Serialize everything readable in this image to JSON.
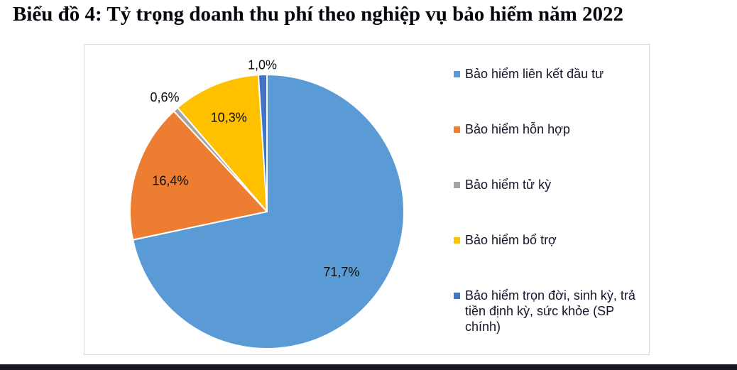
{
  "page": {
    "title": "Biểu đồ 4: Tỷ trọng doanh thu phí theo nghiệp vụ bảo hiểm năm 2022",
    "bottom_bar_color": "#171722"
  },
  "chart_data": {
    "type": "pie",
    "title": "Biểu đồ 4: Tỷ trọng doanh thu phí theo nghiệp vụ bảo hiểm năm 2022",
    "legend_position": "right",
    "start_angle_deg": 0,
    "direction": "clockwise",
    "value_unit": "%",
    "decimal_style": "comma",
    "slices": [
      {
        "label": "Bảo hiểm liên kết đầu tư",
        "value": 71.7,
        "display": "71,7%",
        "color": "#5B9BD5",
        "label_placement": "inside",
        "label_radius": 0.7
      },
      {
        "label": "Bảo hiểm hỗn hợp",
        "value": 16.4,
        "display": "16,4%",
        "color": "#ED7D31",
        "label_placement": "inside",
        "label_radius": 0.74
      },
      {
        "label": "Bảo hiểm tử kỳ",
        "value": 0.6,
        "display": "0,6%",
        "color": "#A5A5A5",
        "label_placement": "outside",
        "label_radius": 1.12
      },
      {
        "label": "Bảo hiểm bổ trợ",
        "value": 10.3,
        "display": "10,3%",
        "color": "#FFC000",
        "label_placement": "inside",
        "label_radius": 0.74
      },
      {
        "label": "Bảo hiểm trọn đời, sinh kỳ, trả tiền định kỳ, sức khỏe (SP chính)",
        "value": 1.0,
        "display": "1,0%",
        "color": "#4472C4",
        "label_placement": "outside",
        "label_radius": 1.07
      }
    ]
  }
}
